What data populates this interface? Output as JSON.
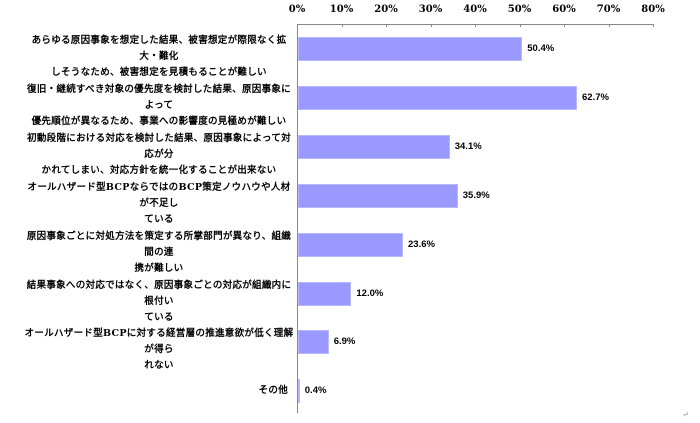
{
  "chart_data": {
    "type": "bar",
    "orientation": "horizontal",
    "title": "",
    "xlabel": "",
    "ylabel": "",
    "xlim": [
      0,
      80
    ],
    "x_ticks": [
      "0%",
      "10%",
      "20%",
      "30%",
      "40%",
      "50%",
      "60%",
      "70%",
      "80%"
    ],
    "axis_position": "top",
    "grid": false,
    "legend": null,
    "bar_color": "#9999ff",
    "categories": [
      "あらゆる原因事象を想定した結果、被害想定が際限なく拡大・難化しそうなため、被害想定を見積もることが難しい",
      "復旧・継続すべき対象の優先度を検討した結果、原因事象によって優先順位が異なるため、事業への影響度の見極めが難しい",
      "初動段階における対応を検討した結果、原因事象によって対応が分かれてしまい、対応方針を統一化することが出来ない",
      "オールハザード型BCPならではのBCP策定ノウハウや人材が不足している",
      "原因事象ごとに対処方法を策定する所掌部門が異なり、組織間の連携が難しい",
      "結果事象への対応ではなく、原因事象ごとの対応が組織内に根付いている",
      "オールハザード型BCPに対する経営層の推進意欲が低く理解が得られない",
      "その他"
    ],
    "values": [
      50.4,
      62.7,
      34.1,
      35.9,
      23.6,
      12.0,
      6.9,
      0.4
    ],
    "value_labels": [
      "50.4%",
      "62.7%",
      "34.1%",
      "35.9%",
      "23.6%",
      "12.0%",
      "6.9%",
      "0.4%"
    ]
  },
  "labels": [
    {
      "line1": "あらゆる原因事象を想定した結果、被害想定が際限なく拡大・難化",
      "line2": "しそうなため、被害想定を見積もることが難しい"
    },
    {
      "line1": "復旧・継続すべき対象の優先度を検討した結果、原因事象によって",
      "line2": "優先順位が異なるため、事業への影響度の見極めが難しい"
    },
    {
      "line1": "初動段階における対応を検討した結果、原因事象によって対応が分",
      "line2": "かれてしまい、対応方針を統一化することが出来ない"
    },
    {
      "line1": "オールハザード型BCPならではのBCP策定ノウハウや人材が不足し",
      "line2": "ている"
    },
    {
      "line1": "原因事象ごとに対処方法を策定する所掌部門が異なり、組織間の連",
      "line2": "携が難しい"
    },
    {
      "line1": "結果事象への対応ではなく、原因事象ごとの対応が組織内に根付い",
      "line2": "ている"
    },
    {
      "line1": "オールハザード型BCPに対する経営層の推進意欲が低く理解が得ら",
      "line2": "れない"
    },
    {
      "line1": "その他",
      "line2": ""
    }
  ],
  "return_mark": "↵"
}
